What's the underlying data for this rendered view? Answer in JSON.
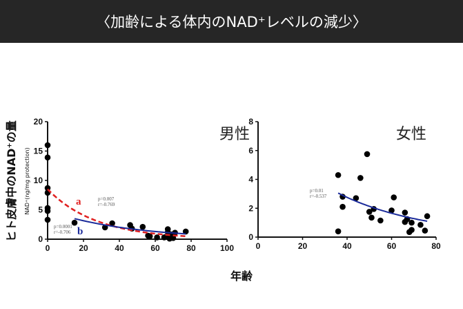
{
  "title": "〈加齢による体内のNAD⁺レベルの減少〉",
  "chart_data": [
    {
      "type": "scatter",
      "title": "男性",
      "xlabel": "年齢",
      "ylabel": "ヒト皮膚中のNAD⁺の量",
      "ylabel_sub": "NAD⁺(ng/mg protection)",
      "xlim": [
        0,
        100
      ],
      "ylim": [
        0,
        20
      ],
      "xticks": [
        "0",
        "20",
        "40",
        "60",
        "80",
        "100"
      ],
      "yticks": [
        "0",
        "5",
        "10",
        "15",
        "20"
      ],
      "points": [
        [
          0,
          16
        ],
        [
          0,
          13.9
        ],
        [
          0,
          8.7
        ],
        [
          0,
          7.9
        ],
        [
          0,
          5.3
        ],
        [
          0,
          4.8
        ],
        [
          0,
          3.3
        ],
        [
          15,
          2.8
        ],
        [
          32,
          2.0
        ],
        [
          36,
          2.7
        ],
        [
          46,
          2.4
        ],
        [
          47,
          1.8
        ],
        [
          53,
          2.1
        ],
        [
          56,
          0.6
        ],
        [
          57,
          0.5
        ],
        [
          61,
          0.3
        ],
        [
          65,
          0.3
        ],
        [
          66,
          0.4
        ],
        [
          67,
          1.7
        ],
        [
          67,
          1.2
        ],
        [
          68,
          0.1
        ],
        [
          69,
          0.8
        ],
        [
          70,
          0.2
        ],
        [
          71,
          1.1
        ],
        [
          77,
          1.3
        ]
      ],
      "fits": [
        {
          "label": "a",
          "color": "#e02020",
          "style": "dashed",
          "x": [
            0,
            77
          ],
          "y0": 8.5,
          "y1": 0.5,
          "p": "p=0.007",
          "r": "r=-0.769"
        },
        {
          "label": "b",
          "color": "#1a2a9a",
          "style": "solid",
          "x": [
            15,
            77
          ],
          "y0": 3.5,
          "y1": 0.9,
          "p": "p=0.0001",
          "r": "r=-0.706"
        }
      ]
    },
    {
      "type": "scatter",
      "title": "女性",
      "xlim": [
        0,
        80
      ],
      "ylim": [
        0,
        8
      ],
      "xticks": [
        "0",
        "20",
        "40",
        "60",
        "80"
      ],
      "yticks": [
        "0",
        "2",
        "4",
        "6",
        "8"
      ],
      "points": [
        [
          36,
          4.3
        ],
        [
          36,
          0.4
        ],
        [
          38,
          2.8
        ],
        [
          38,
          2.1
        ],
        [
          44,
          2.7
        ],
        [
          46,
          4.1
        ],
        [
          49,
          5.75
        ],
        [
          50,
          1.75
        ],
        [
          51,
          1.35
        ],
        [
          52,
          1.95
        ],
        [
          55,
          1.15
        ],
        [
          60,
          1.85
        ],
        [
          61,
          2.75
        ],
        [
          66,
          1.7
        ],
        [
          66,
          1.05
        ],
        [
          67,
          1.25
        ],
        [
          68,
          0.35
        ],
        [
          69,
          0.5
        ],
        [
          69,
          1.0
        ],
        [
          73,
          0.85
        ],
        [
          75,
          0.45
        ],
        [
          76,
          1.45
        ]
      ],
      "fits": [
        {
          "label": "",
          "color": "#1a2a9a",
          "style": "solid",
          "x": [
            36,
            76
          ],
          "y0": 3.05,
          "y1": 1.1,
          "p": "p=0.01",
          "r": "r=-0.537"
        }
      ]
    }
  ]
}
